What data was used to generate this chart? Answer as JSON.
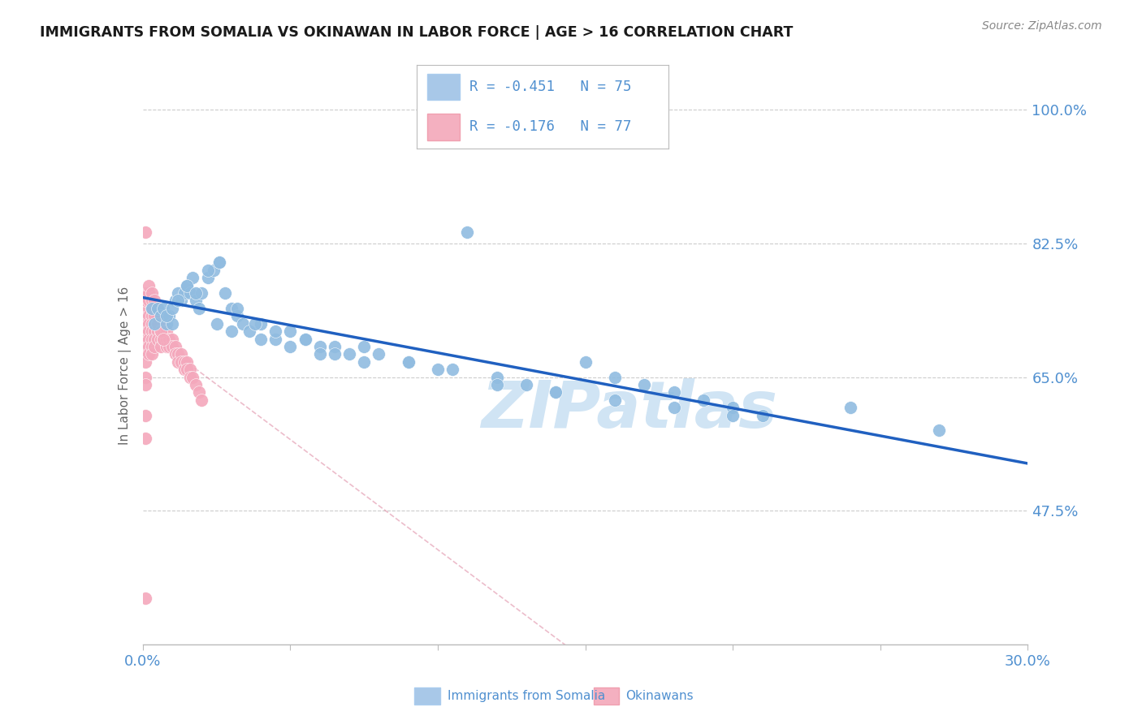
{
  "title": "IMMIGRANTS FROM SOMALIA VS OKINAWAN IN LABOR FORCE | AGE > 16 CORRELATION CHART",
  "source": "Source: ZipAtlas.com",
  "ylabel": "In Labor Force | Age > 16",
  "xlim": [
    0.0,
    0.3
  ],
  "ylim": [
    0.3,
    1.03
  ],
  "yticks": [
    0.475,
    0.65,
    0.825,
    1.0
  ],
  "ytick_labels": [
    "47.5%",
    "65.0%",
    "82.5%",
    "100.0%"
  ],
  "xticks": [
    0.0,
    0.05,
    0.1,
    0.15,
    0.2,
    0.25,
    0.3
  ],
  "xtick_labels": [
    "0.0%",
    "",
    "",
    "",
    "",
    "",
    "30.0%"
  ],
  "legend_entries": [
    {
      "label": "R = -0.451   N = 75",
      "color": "#a8c8e8"
    },
    {
      "label": "R = -0.176   N = 77",
      "color": "#f4b0c0"
    }
  ],
  "somalia_color": "#90bce0",
  "okinawan_color": "#f4a8bc",
  "regression_somalia_color": "#2060c0",
  "regression_okinawan_color": "#e090a8",
  "watermark": "ZIPatlas",
  "watermark_color": "#d0e4f4",
  "axis_color": "#5090d0",
  "grid_color": "#cccccc",
  "background_color": "#ffffff",
  "somalia_x": [
    0.003,
    0.004,
    0.005,
    0.006,
    0.007,
    0.008,
    0.009,
    0.01,
    0.011,
    0.012,
    0.013,
    0.014,
    0.015,
    0.016,
    0.017,
    0.018,
    0.019,
    0.02,
    0.022,
    0.024,
    0.026,
    0.028,
    0.03,
    0.032,
    0.034,
    0.036,
    0.04,
    0.045,
    0.05,
    0.055,
    0.06,
    0.065,
    0.07,
    0.075,
    0.08,
    0.09,
    0.1,
    0.11,
    0.12,
    0.13,
    0.14,
    0.15,
    0.16,
    0.17,
    0.18,
    0.19,
    0.2,
    0.21,
    0.24,
    0.27,
    0.008,
    0.01,
    0.012,
    0.015,
    0.018,
    0.022,
    0.026,
    0.032,
    0.038,
    0.045,
    0.055,
    0.065,
    0.075,
    0.09,
    0.105,
    0.12,
    0.14,
    0.16,
    0.18,
    0.2,
    0.025,
    0.03,
    0.04,
    0.05,
    0.06
  ],
  "somalia_y": [
    0.74,
    0.72,
    0.74,
    0.73,
    0.74,
    0.72,
    0.73,
    0.72,
    0.75,
    0.76,
    0.75,
    0.76,
    0.77,
    0.76,
    0.78,
    0.75,
    0.74,
    0.76,
    0.78,
    0.79,
    0.8,
    0.76,
    0.74,
    0.73,
    0.72,
    0.71,
    0.72,
    0.7,
    0.71,
    0.7,
    0.69,
    0.69,
    0.68,
    0.67,
    0.68,
    0.67,
    0.66,
    0.84,
    0.65,
    0.64,
    0.63,
    0.67,
    0.65,
    0.64,
    0.63,
    0.62,
    0.61,
    0.6,
    0.61,
    0.58,
    0.73,
    0.74,
    0.75,
    0.77,
    0.76,
    0.79,
    0.8,
    0.74,
    0.72,
    0.71,
    0.7,
    0.68,
    0.69,
    0.67,
    0.66,
    0.64,
    0.63,
    0.62,
    0.61,
    0.6,
    0.72,
    0.71,
    0.7,
    0.69,
    0.68
  ],
  "okinawan_x": [
    0.001,
    0.001,
    0.001,
    0.001,
    0.001,
    0.001,
    0.001,
    0.001,
    0.001,
    0.002,
    0.002,
    0.002,
    0.002,
    0.002,
    0.002,
    0.002,
    0.003,
    0.003,
    0.003,
    0.003,
    0.003,
    0.003,
    0.004,
    0.004,
    0.004,
    0.004,
    0.005,
    0.005,
    0.005,
    0.005,
    0.006,
    0.006,
    0.006,
    0.007,
    0.007,
    0.007,
    0.008,
    0.008,
    0.008,
    0.009,
    0.009,
    0.01,
    0.01,
    0.011,
    0.011,
    0.012,
    0.012,
    0.013,
    0.013,
    0.014,
    0.014,
    0.015,
    0.015,
    0.016,
    0.016,
    0.017,
    0.018,
    0.019,
    0.02,
    0.001,
    0.001,
    0.002,
    0.002,
    0.003,
    0.003,
    0.004,
    0.005,
    0.006,
    0.007,
    0.001,
    0.002,
    0.003,
    0.004,
    0.005,
    0.001,
    0.001,
    0.001
  ],
  "okinawan_y": [
    0.73,
    0.72,
    0.71,
    0.7,
    0.69,
    0.68,
    0.67,
    0.65,
    0.64,
    0.74,
    0.73,
    0.72,
    0.71,
    0.7,
    0.69,
    0.68,
    0.73,
    0.72,
    0.71,
    0.7,
    0.69,
    0.68,
    0.72,
    0.71,
    0.7,
    0.69,
    0.73,
    0.72,
    0.71,
    0.7,
    0.71,
    0.7,
    0.69,
    0.72,
    0.71,
    0.7,
    0.71,
    0.7,
    0.69,
    0.7,
    0.69,
    0.7,
    0.69,
    0.69,
    0.68,
    0.68,
    0.67,
    0.68,
    0.67,
    0.67,
    0.66,
    0.67,
    0.66,
    0.66,
    0.65,
    0.65,
    0.64,
    0.63,
    0.62,
    0.75,
    0.76,
    0.75,
    0.76,
    0.74,
    0.75,
    0.73,
    0.72,
    0.71,
    0.7,
    0.84,
    0.77,
    0.76,
    0.75,
    0.74,
    0.6,
    0.57,
    0.36
  ]
}
